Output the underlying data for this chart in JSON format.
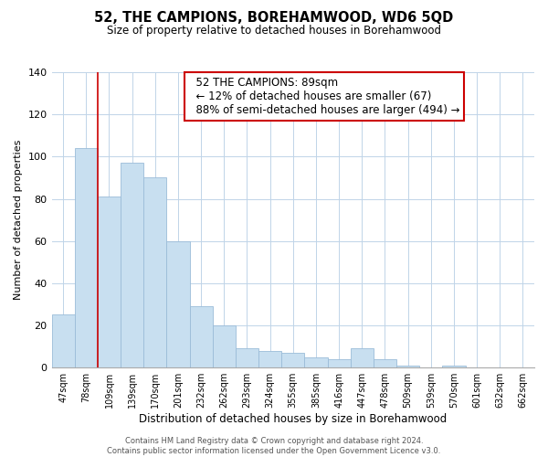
{
  "title": "52, THE CAMPIONS, BOREHAMWOOD, WD6 5QD",
  "subtitle": "Size of property relative to detached houses in Borehamwood",
  "xlabel": "Distribution of detached houses by size in Borehamwood",
  "ylabel": "Number of detached properties",
  "bar_labels": [
    "47sqm",
    "78sqm",
    "109sqm",
    "139sqm",
    "170sqm",
    "201sqm",
    "232sqm",
    "262sqm",
    "293sqm",
    "324sqm",
    "355sqm",
    "385sqm",
    "416sqm",
    "447sqm",
    "478sqm",
    "509sqm",
    "539sqm",
    "570sqm",
    "601sqm",
    "632sqm",
    "662sqm"
  ],
  "bar_values": [
    25,
    104,
    81,
    97,
    90,
    60,
    29,
    20,
    9,
    8,
    7,
    5,
    4,
    9,
    4,
    1,
    0,
    1,
    0,
    0,
    0
  ],
  "bar_color": "#c8dff0",
  "bar_edge_color": "#9bbcd8",
  "highlight_bar_index": 1,
  "highlight_color": "#cc0000",
  "ylim": [
    0,
    140
  ],
  "yticks": [
    0,
    20,
    40,
    60,
    80,
    100,
    120,
    140
  ],
  "annotation_title": "52 THE CAMPIONS: 89sqm",
  "annotation_line1": "← 12% of detached houses are smaller (67)",
  "annotation_line2": "88% of semi-detached houses are larger (494) →",
  "footer_line1": "Contains HM Land Registry data © Crown copyright and database right 2024.",
  "footer_line2": "Contains public sector information licensed under the Open Government Licence v3.0.",
  "background_color": "#ffffff",
  "grid_color": "#c0d4e8"
}
